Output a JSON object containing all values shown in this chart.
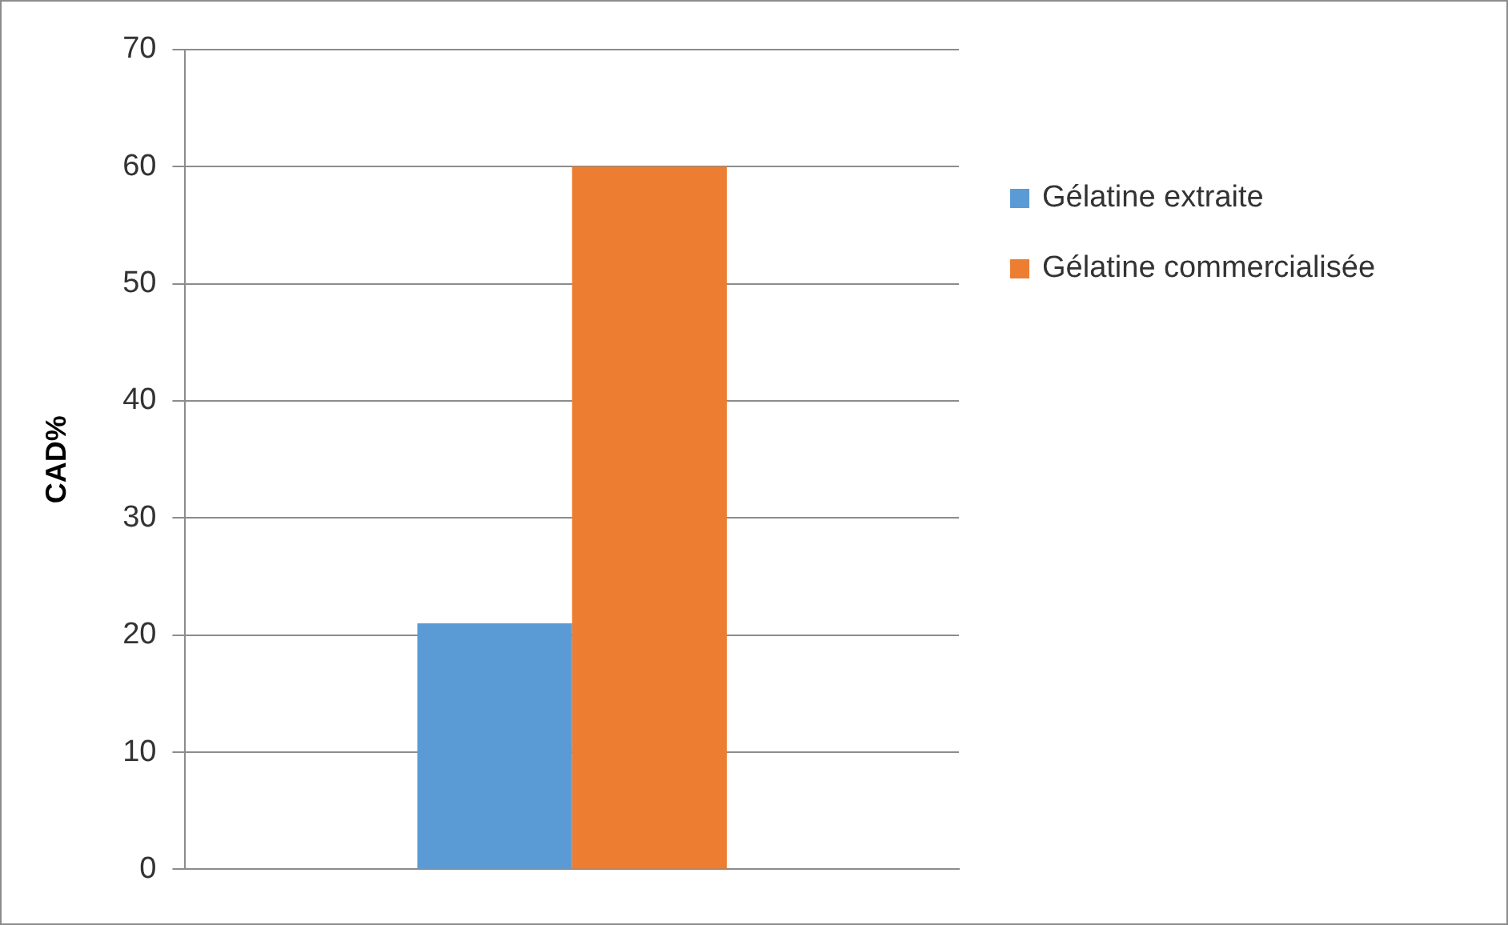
{
  "chart_data": {
    "type": "bar",
    "ylabel": "CAD%",
    "categories": [
      null
    ],
    "series": [
      {
        "name": "Gélatine extraite",
        "color": "#5b9bd5",
        "values": [
          21
        ]
      },
      {
        "name": "Gélatine commercialisée",
        "color": "#ed7d31",
        "values": [
          60
        ]
      }
    ],
    "ylim": [
      0,
      70
    ],
    "yticks": [
      0,
      10,
      20,
      30,
      40,
      50,
      60,
      70
    ],
    "grid": "y",
    "legend": "right"
  }
}
